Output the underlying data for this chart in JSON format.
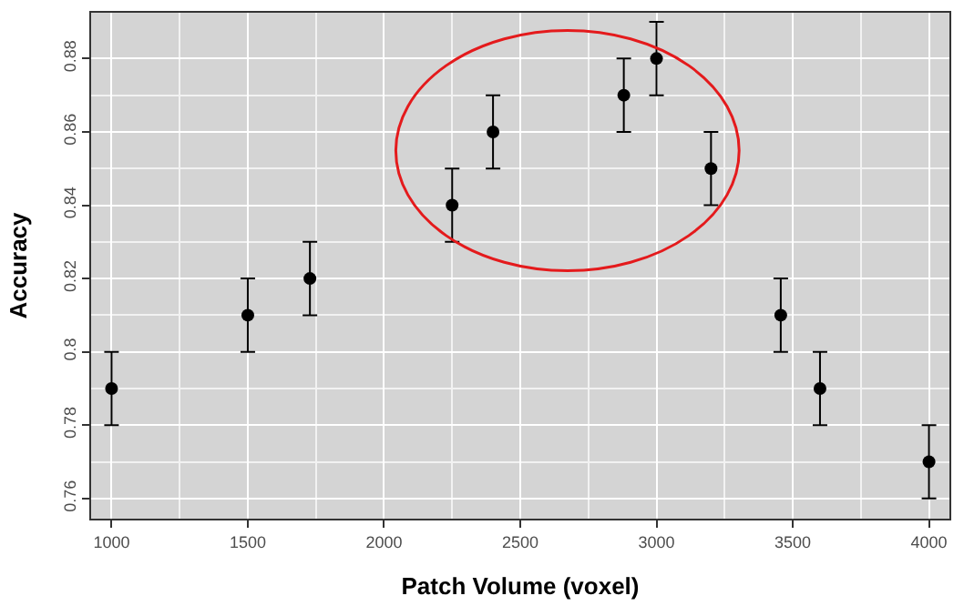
{
  "chart_data": {
    "type": "scatter",
    "xlabel": "Patch Volume (voxel)",
    "ylabel": "Accuracy",
    "x": [
      1000,
      1500,
      1728,
      2250,
      2400,
      2880,
      3000,
      3200,
      3456,
      3600,
      4000
    ],
    "series": [
      {
        "color": "#000000",
        "values": [
          0.79,
          0.81,
          0.82,
          0.84,
          0.86,
          0.87,
          0.88,
          0.85,
          0.81,
          0.79,
          0.77
        ],
        "errors": [
          0.01,
          0.01,
          0.01,
          0.01,
          0.01,
          0.01,
          0.01,
          0.01,
          0.01,
          0.01,
          0.01
        ]
      }
    ],
    "xlim": [
      925,
      4075
    ],
    "ylim": [
      0.7545,
      0.8925
    ],
    "xticks": [
      1000,
      1500,
      2000,
      2500,
      3000,
      3500,
      4000
    ],
    "yticks": [
      0.76,
      0.78,
      0.8,
      0.82,
      0.84,
      0.86,
      0.88
    ],
    "grid": true,
    "marker": "circle"
  }
}
